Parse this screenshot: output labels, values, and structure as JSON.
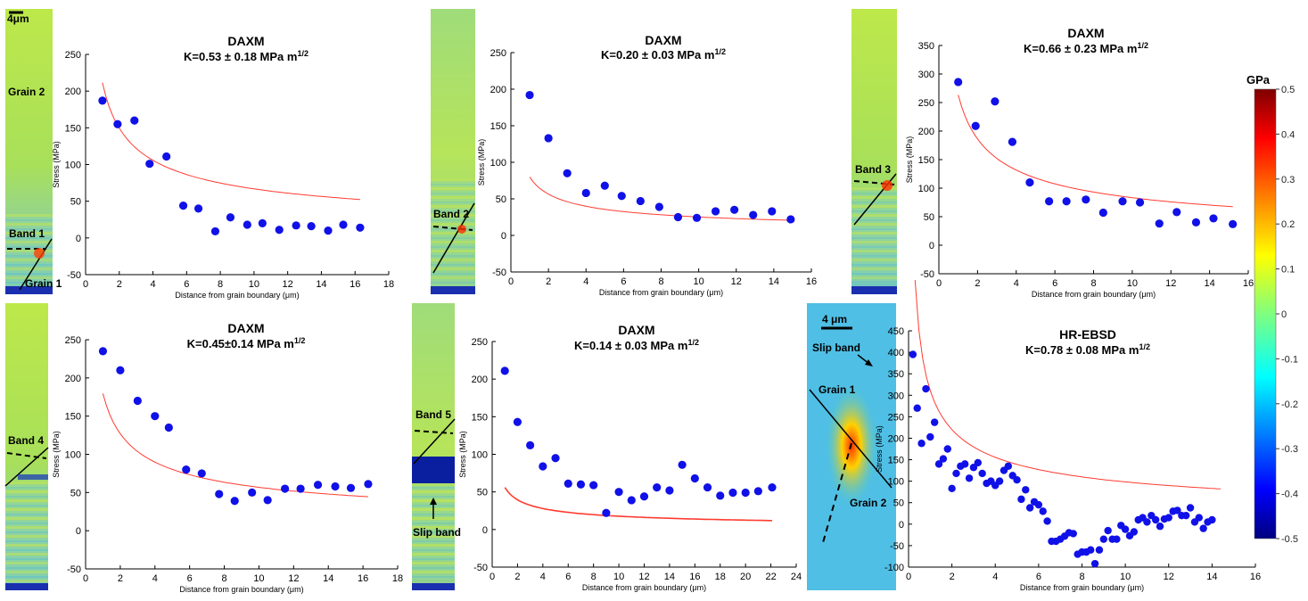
{
  "colorbar": {
    "unit_label": "GPa",
    "tick_labels": [
      "0.5",
      "0.4",
      "0.3",
      "0.2",
      "0.1",
      "0",
      "-0.1",
      "-0.2",
      "-0.3",
      "-0.4",
      "-0.5"
    ],
    "range": [
      -0.5,
      0.5
    ],
    "colormap": "jet"
  },
  "maps": [
    {
      "labels": [
        "4μm",
        "Grain 2",
        "Band 1",
        "Grain 1"
      ]
    },
    {
      "labels": [
        "Band 2"
      ]
    },
    {
      "labels": [
        "Band 3"
      ]
    },
    {
      "labels": [
        "Band 4"
      ]
    },
    {
      "labels": [
        "Band 5",
        "Slip band"
      ]
    },
    {
      "labels": [
        "4 μm",
        "Slip band",
        "Grain 1",
        "Grain 2"
      ]
    }
  ],
  "chart_data": [
    {
      "type": "scatter",
      "title": "DAXM",
      "subtitle": "K=0.53 ± 0.18 MPa m",
      "subtitle_sup": "1/2",
      "xlabel": "Distance from grain boundary (μm)",
      "ylabel": "Stress (MPa)",
      "xlim": [
        0,
        18
      ],
      "ylim": [
        -50,
        250
      ],
      "xticks": [
        0,
        2,
        4,
        6,
        8,
        10,
        12,
        14,
        16,
        18
      ],
      "yticks": [
        -50,
        0,
        50,
        100,
        150,
        200,
        250
      ],
      "fit": {
        "K": 0.53,
        "x_range": [
          1,
          16.3
        ]
      },
      "points": [
        [
          1,
          187
        ],
        [
          1.9,
          155
        ],
        [
          2.9,
          160
        ],
        [
          3.8,
          101
        ],
        [
          4.8,
          111
        ],
        [
          5.8,
          44
        ],
        [
          6.7,
          40
        ],
        [
          7.7,
          9
        ],
        [
          8.6,
          28
        ],
        [
          9.6,
          18
        ],
        [
          10.5,
          20
        ],
        [
          11.5,
          11
        ],
        [
          12.5,
          17
        ],
        [
          13.4,
          16
        ],
        [
          14.4,
          10
        ],
        [
          15.3,
          18
        ],
        [
          16.3,
          14
        ]
      ]
    },
    {
      "type": "scatter",
      "title": "DAXM",
      "subtitle": "K=0.20 ± 0.03 MPa m",
      "subtitle_sup": "1/2",
      "xlabel": "Distance from grain boundary (μm)",
      "ylabel": "Stress (MPa)",
      "xlim": [
        0,
        16
      ],
      "ylim": [
        -50,
        250
      ],
      "xticks": [
        0,
        2,
        4,
        6,
        8,
        10,
        12,
        14,
        16
      ],
      "yticks": [
        -50,
        0,
        50,
        100,
        150,
        200,
        250
      ],
      "fit": {
        "K": 0.2,
        "x_range": [
          1,
          14.9
        ]
      },
      "points": [
        [
          1,
          192
        ],
        [
          2,
          133
        ],
        [
          3,
          85
        ],
        [
          4,
          58
        ],
        [
          5,
          68
        ],
        [
          5.9,
          54
        ],
        [
          6.9,
          47
        ],
        [
          7.9,
          39
        ],
        [
          8.9,
          25
        ],
        [
          9.9,
          24
        ],
        [
          10.9,
          33
        ],
        [
          11.9,
          35
        ],
        [
          12.9,
          28
        ],
        [
          13.9,
          33
        ],
        [
          14.9,
          22
        ]
      ]
    },
    {
      "type": "scatter",
      "title": "DAXM",
      "subtitle": "K=0.66 ± 0.23 MPa m",
      "subtitle_sup": "1/2",
      "xlabel": "Distance from grain boundary (μm)",
      "ylabel": "Stress (MPa)",
      "xlim": [
        0,
        16
      ],
      "ylim": [
        -50,
        350
      ],
      "xticks": [
        0,
        2,
        4,
        6,
        8,
        10,
        12,
        14,
        16
      ],
      "yticks": [
        -50,
        0,
        50,
        100,
        150,
        200,
        250,
        300,
        350
      ],
      "fit": {
        "K": 0.66,
        "x_range": [
          1,
          15.2
        ]
      },
      "points": [
        [
          1,
          286
        ],
        [
          1.9,
          209
        ],
        [
          2.9,
          252
        ],
        [
          3.8,
          181
        ],
        [
          4.7,
          110
        ],
        [
          5.7,
          77
        ],
        [
          6.6,
          77
        ],
        [
          7.6,
          80
        ],
        [
          8.5,
          57
        ],
        [
          9.5,
          77
        ],
        [
          10.4,
          75
        ],
        [
          11.4,
          38
        ],
        [
          12.3,
          58
        ],
        [
          13.3,
          40
        ],
        [
          14.2,
          47
        ],
        [
          15.2,
          37
        ]
      ]
    },
    {
      "type": "scatter",
      "title": "DAXM",
      "subtitle": "K=0.45±0.14 MPa m",
      "subtitle_sup": "1/2",
      "xlabel": "Distance from grain boundary (μm)",
      "ylabel": "Stress (MPa)",
      "xlim": [
        0,
        18
      ],
      "ylim": [
        -50,
        250
      ],
      "xticks": [
        0,
        2,
        4,
        6,
        8,
        10,
        12,
        14,
        16,
        18
      ],
      "yticks": [
        -50,
        0,
        50,
        100,
        150,
        200,
        250
      ],
      "fit": {
        "K": 0.45,
        "x_range": [
          1,
          16.3
        ]
      },
      "points": [
        [
          1,
          235
        ],
        [
          2,
          210
        ],
        [
          3,
          170
        ],
        [
          4,
          150
        ],
        [
          4.8,
          135
        ],
        [
          5.8,
          80
        ],
        [
          6.7,
          75
        ],
        [
          7.7,
          48
        ],
        [
          8.6,
          39
        ],
        [
          9.6,
          50
        ],
        [
          10.5,
          40
        ],
        [
          11.5,
          55
        ],
        [
          12.4,
          55
        ],
        [
          13.4,
          60
        ],
        [
          14.4,
          58
        ],
        [
          15.3,
          56
        ],
        [
          16.3,
          61
        ]
      ]
    },
    {
      "type": "scatter",
      "title": "DAXM",
      "subtitle": "K=0.14 ± 0.03 MPa m",
      "subtitle_sup": "1/2",
      "xlabel": "Distance from grain boundary (μm)",
      "ylabel": "Stress (MPa)",
      "xlim": [
        0,
        24
      ],
      "ylim": [
        -50,
        250
      ],
      "xticks": [
        0,
        2,
        4,
        6,
        8,
        10,
        12,
        14,
        16,
        18,
        20,
        22,
        24
      ],
      "yticks": [
        -50,
        0,
        50,
        100,
        150,
        200,
        250
      ],
      "fit": {
        "K": 0.14,
        "x_range": [
          1,
          22.1
        ]
      },
      "points": [
        [
          1,
          211
        ],
        [
          2,
          143
        ],
        [
          3,
          112
        ],
        [
          4,
          84
        ],
        [
          5,
          95
        ],
        [
          6,
          61
        ],
        [
          7,
          60
        ],
        [
          8,
          59
        ],
        [
          9,
          22
        ],
        [
          10,
          50
        ],
        [
          11,
          39
        ],
        [
          12,
          44
        ],
        [
          13,
          56
        ],
        [
          14,
          52
        ],
        [
          15,
          86
        ],
        [
          16,
          68
        ],
        [
          17,
          56
        ],
        [
          18,
          45
        ],
        [
          19,
          49
        ],
        [
          20,
          49
        ],
        [
          21,
          51
        ],
        [
          22.1,
          56
        ]
      ]
    },
    {
      "type": "scatter",
      "title": "HR-EBSD",
      "subtitle": "K=0.78 ± 0.08 MPa m",
      "subtitle_sup": "1/2",
      "xlabel": "Distance from grain boundary (μm)",
      "ylabel": "Stress (MPa)",
      "xlim": [
        0,
        16
      ],
      "ylim": [
        -100,
        450
      ],
      "xticks": [
        0,
        2,
        4,
        6,
        8,
        10,
        12,
        14,
        16
      ],
      "yticks": [
        -100,
        -50,
        0,
        50,
        100,
        150,
        200,
        250,
        300,
        350,
        400,
        450
      ],
      "fit": {
        "K": 0.78,
        "x_range": [
          0.3,
          14.4
        ]
      },
      "points": [
        [
          0.2,
          395
        ],
        [
          0.4,
          270
        ],
        [
          0.6,
          188
        ],
        [
          0.8,
          315
        ],
        [
          1.0,
          203
        ],
        [
          1.2,
          237
        ],
        [
          1.4,
          140
        ],
        [
          1.6,
          152
        ],
        [
          1.8,
          175
        ],
        [
          2.0,
          83
        ],
        [
          2.2,
          118
        ],
        [
          2.4,
          135
        ],
        [
          2.6,
          140
        ],
        [
          2.8,
          107
        ],
        [
          3.0,
          132
        ],
        [
          3.2,
          143
        ],
        [
          3.4,
          118
        ],
        [
          3.6,
          95
        ],
        [
          3.8,
          100
        ],
        [
          4.0,
          90
        ],
        [
          4.2,
          100
        ],
        [
          4.4,
          125
        ],
        [
          4.6,
          135
        ],
        [
          4.8,
          113
        ],
        [
          5.0,
          103
        ],
        [
          5.2,
          58
        ],
        [
          5.4,
          80
        ],
        [
          5.6,
          38
        ],
        [
          5.8,
          52
        ],
        [
          6.0,
          45
        ],
        [
          6.2,
          30
        ],
        [
          6.4,
          7
        ],
        [
          6.6,
          -40
        ],
        [
          6.8,
          -40
        ],
        [
          7.0,
          -35
        ],
        [
          7.2,
          -28
        ],
        [
          7.4,
          -20
        ],
        [
          7.6,
          -22
        ],
        [
          7.8,
          -70
        ],
        [
          8.0,
          -65
        ],
        [
          8.2,
          -65
        ],
        [
          8.4,
          -60
        ],
        [
          8.6,
          -92
        ],
        [
          8.8,
          -60
        ],
        [
          9.0,
          -35
        ],
        [
          9.2,
          -15
        ],
        [
          9.4,
          -35
        ],
        [
          9.6,
          -35
        ],
        [
          9.8,
          -3
        ],
        [
          10.0,
          -12
        ],
        [
          10.2,
          -27
        ],
        [
          10.4,
          -18
        ],
        [
          10.6,
          10
        ],
        [
          10.8,
          15
        ],
        [
          11.0,
          5
        ],
        [
          11.2,
          20
        ],
        [
          11.4,
          10
        ],
        [
          11.6,
          -5
        ],
        [
          11.8,
          12
        ],
        [
          12.0,
          15
        ],
        [
          12.2,
          30
        ],
        [
          12.4,
          32
        ],
        [
          12.6,
          20
        ],
        [
          12.8,
          20
        ],
        [
          13.0,
          38
        ],
        [
          13.2,
          5
        ],
        [
          13.4,
          15
        ],
        [
          13.6,
          -10
        ],
        [
          13.8,
          5
        ],
        [
          14.0,
          10
        ]
      ]
    }
  ]
}
